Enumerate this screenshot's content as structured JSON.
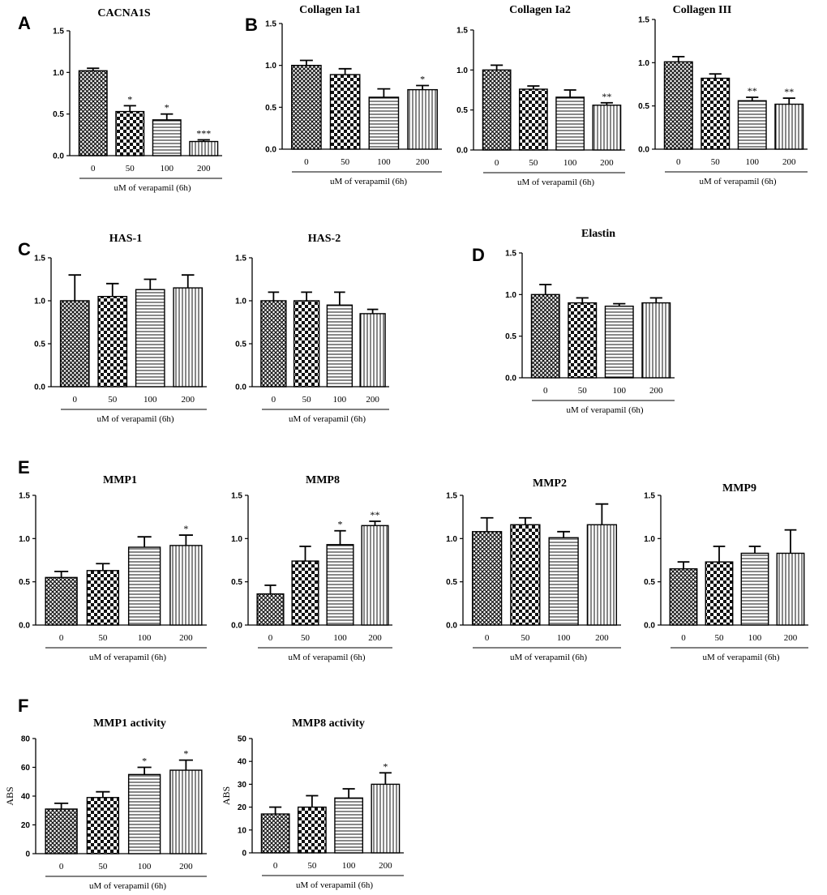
{
  "panel_labels": [
    "A",
    "B",
    "C",
    "D",
    "E",
    "F"
  ],
  "patterns": [
    "crosshatch",
    "checker",
    "horizontal-lines",
    "vertical-lines"
  ],
  "chart_data": [
    {
      "id": "cacna1s",
      "panel": "A",
      "type": "bar",
      "title": "CACNA1S",
      "categories": [
        "0",
        "50",
        "100",
        "200"
      ],
      "values": [
        1.02,
        0.53,
        0.43,
        0.17
      ],
      "errors": [
        0.03,
        0.07,
        0.07,
        0.02
      ],
      "sig": [
        "",
        "*",
        "*",
        "***"
      ],
      "ylim": [
        0,
        1.5
      ],
      "yticks": [
        "0.0",
        "0.5",
        "1.0",
        "1.5"
      ],
      "xlabel": "uM of verapamil (6h)",
      "ylabel": ""
    },
    {
      "id": "col1a1",
      "panel": "B",
      "type": "bar",
      "title": "Collagen Ia1",
      "categories": [
        "0",
        "50",
        "100",
        "200"
      ],
      "values": [
        1.0,
        0.89,
        0.62,
        0.71
      ],
      "errors": [
        0.06,
        0.07,
        0.1,
        0.05
      ],
      "sig": [
        "",
        "",
        "",
        "*"
      ],
      "ylim": [
        0,
        1.5
      ],
      "yticks": [
        "0.0",
        "0.5",
        "1.0",
        "1.5"
      ],
      "xlabel": "uM of verapamil (6h)",
      "ylabel": ""
    },
    {
      "id": "col1a2",
      "panel": "",
      "type": "bar",
      "title": "Collagen Ia2",
      "categories": [
        "0",
        "50",
        "100",
        "200"
      ],
      "values": [
        1.0,
        0.76,
        0.66,
        0.56
      ],
      "errors": [
        0.06,
        0.04,
        0.09,
        0.03
      ],
      "sig": [
        "",
        "",
        "",
        "**"
      ],
      "ylim": [
        0,
        1.5
      ],
      "yticks": [
        "0.0",
        "0.5",
        "1.0",
        "1.5"
      ],
      "xlabel": "uM of verapamil (6h)",
      "ylabel": ""
    },
    {
      "id": "col3",
      "panel": "",
      "type": "bar",
      "title": "Collagen III",
      "categories": [
        "0",
        "50",
        "100",
        "200"
      ],
      "values": [
        1.01,
        0.82,
        0.56,
        0.52
      ],
      "errors": [
        0.06,
        0.05,
        0.04,
        0.07
      ],
      "sig": [
        "",
        "",
        "**",
        "**"
      ],
      "ylim": [
        0,
        1.5
      ],
      "yticks": [
        "0.0",
        "0.5",
        "1.0",
        "1.5"
      ],
      "xlabel": "uM of verapamil (6h)",
      "ylabel": ""
    },
    {
      "id": "has1",
      "panel": "C",
      "type": "bar",
      "title": "HAS-1",
      "categories": [
        "0",
        "50",
        "100",
        "200"
      ],
      "values": [
        1.0,
        1.05,
        1.13,
        1.15
      ],
      "errors": [
        0.3,
        0.15,
        0.12,
        0.15
      ],
      "sig": [
        "",
        "",
        "",
        ""
      ],
      "ylim": [
        0,
        1.5
      ],
      "yticks": [
        "0.0",
        "0.5",
        "1.0",
        "1.5"
      ],
      "xlabel": "uM of verapamil (6h)",
      "ylabel": ""
    },
    {
      "id": "has2",
      "panel": "",
      "type": "bar",
      "title": "HAS-2",
      "categories": [
        "0",
        "50",
        "100",
        "200"
      ],
      "values": [
        1.0,
        1.0,
        0.95,
        0.85
      ],
      "errors": [
        0.1,
        0.1,
        0.15,
        0.05
      ],
      "sig": [
        "",
        "",
        "",
        ""
      ],
      "ylim": [
        0,
        1.5
      ],
      "yticks": [
        "0.0",
        "0.5",
        "1.0",
        "1.5"
      ],
      "xlabel": "uM of verapamil (6h)",
      "ylabel": ""
    },
    {
      "id": "elastin",
      "panel": "D",
      "type": "bar",
      "title": "Elastin",
      "categories": [
        "0",
        "50",
        "100",
        "200"
      ],
      "values": [
        1.0,
        0.9,
        0.86,
        0.9
      ],
      "errors": [
        0.12,
        0.06,
        0.03,
        0.06
      ],
      "sig": [
        "",
        "",
        "",
        ""
      ],
      "ylim": [
        0,
        1.5
      ],
      "yticks": [
        "0.0",
        "0.5",
        "1.0",
        "1.5"
      ],
      "xlabel": "uM of verapamil (6h)",
      "ylabel": ""
    },
    {
      "id": "mmp1",
      "panel": "E",
      "type": "bar",
      "title": "MMP1",
      "categories": [
        "0",
        "50",
        "100",
        "200"
      ],
      "values": [
        0.55,
        0.63,
        0.9,
        0.92
      ],
      "errors": [
        0.07,
        0.08,
        0.12,
        0.12
      ],
      "sig": [
        "",
        "",
        "",
        "*"
      ],
      "ylim": [
        0,
        1.5
      ],
      "yticks": [
        "0.0",
        "0.5",
        "1.0",
        "1.5"
      ],
      "xlabel": "uM of verapamil (6h)",
      "ylabel": ""
    },
    {
      "id": "mmp8",
      "panel": "",
      "type": "bar",
      "title": "MMP8",
      "categories": [
        "0",
        "50",
        "100",
        "200"
      ],
      "values": [
        0.36,
        0.74,
        0.93,
        1.15
      ],
      "errors": [
        0.1,
        0.17,
        0.16,
        0.05
      ],
      "sig": [
        "",
        "",
        "*",
        "**"
      ],
      "ylim": [
        0,
        1.5
      ],
      "yticks": [
        "0.0",
        "0.5",
        "1.0",
        "1.5"
      ],
      "xlabel": "uM of verapamil (6h)",
      "ylabel": ""
    },
    {
      "id": "mmp2",
      "panel": "",
      "type": "bar",
      "title": "MMP2",
      "categories": [
        "0",
        "50",
        "100",
        "200"
      ],
      "values": [
        1.08,
        1.16,
        1.01,
        1.16
      ],
      "errors": [
        0.16,
        0.08,
        0.07,
        0.24
      ],
      "sig": [
        "",
        "",
        "",
        ""
      ],
      "ylim": [
        0,
        1.5
      ],
      "yticks": [
        "0.0",
        "0.5",
        "1.0",
        "1.5"
      ],
      "xlabel": "uM of verapamil (6h)",
      "ylabel": ""
    },
    {
      "id": "mmp9",
      "panel": "",
      "type": "bar",
      "title": "MMP9",
      "categories": [
        "0",
        "50",
        "100",
        "200"
      ],
      "values": [
        0.65,
        0.73,
        0.83,
        0.83
      ],
      "errors": [
        0.08,
        0.18,
        0.08,
        0.27
      ],
      "sig": [
        "",
        "",
        "",
        ""
      ],
      "ylim": [
        0,
        1.5
      ],
      "yticks": [
        "0.0",
        "0.5",
        "1.0",
        "1.5"
      ],
      "xlabel": "uM of verapamil (6h)",
      "ylabel": ""
    },
    {
      "id": "mmp1act",
      "panel": "F",
      "type": "bar",
      "title": "MMP1  activity",
      "categories": [
        "0",
        "50",
        "100",
        "200"
      ],
      "values": [
        31,
        39,
        55,
        58
      ],
      "errors": [
        4,
        4,
        5,
        7
      ],
      "sig": [
        "",
        "",
        "*",
        "*"
      ],
      "ylim": [
        0,
        80
      ],
      "yticks": [
        "0",
        "20",
        "40",
        "60",
        "80"
      ],
      "xlabel": "uM of verapamil (6h)",
      "ylabel": "ABS"
    },
    {
      "id": "mmp8act",
      "panel": "",
      "type": "bar",
      "title": "MMP8  activity",
      "categories": [
        "0",
        "50",
        "100",
        "200"
      ],
      "values": [
        17,
        20,
        24,
        30
      ],
      "errors": [
        3,
        5,
        4,
        5
      ],
      "sig": [
        "",
        "",
        "",
        "*"
      ],
      "ylim": [
        0,
        50
      ],
      "yticks": [
        "0",
        "10",
        "20",
        "30",
        "40",
        "50"
      ],
      "xlabel": "uM of verapamil (6h)",
      "ylabel": "ABS"
    }
  ]
}
